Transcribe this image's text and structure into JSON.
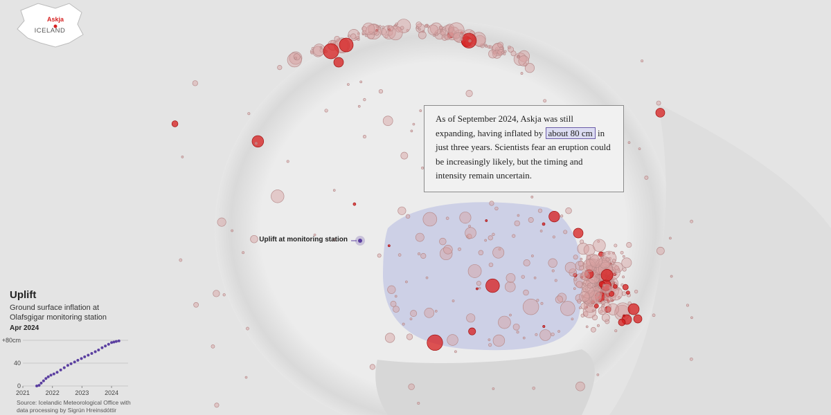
{
  "locator": {
    "place": "Askja",
    "country": "ICELAND"
  },
  "station_label": "Uplift at monitoring station",
  "annotation": {
    "before": "As of September 2024, Askja was still expanding, having inflated by",
    "highlight": "about 80 cm",
    "after": "in just three years. Scientists fear an eruption could be increasingly likely, but the timing and intensity remain uncertain."
  },
  "chart_data": {
    "type": "scatter",
    "title": "Uplift",
    "subtitle": "Ground surface inflation at Olafsgigar monitoring station",
    "date_label": "Apr 2024",
    "source": "Source: Icelandic Meteorological Office with data processing by Sigrún Hreinsdóttir",
    "x": [
      2021.47,
      2021.55,
      2021.62,
      2021.7,
      2021.78,
      2021.86,
      2021.95,
      2022.05,
      2022.16,
      2022.28,
      2022.4,
      2022.52,
      2022.63,
      2022.75,
      2022.86,
      2022.98,
      2023.09,
      2023.21,
      2023.33,
      2023.45,
      2023.56,
      2023.68,
      2023.79,
      2023.9,
      2024.0,
      2024.08,
      2024.16,
      2024.25
    ],
    "values": [
      0,
      1,
      5,
      9,
      13,
      16,
      19,
      21,
      24,
      28,
      32,
      36,
      39,
      42,
      45,
      48,
      51,
      54,
      57,
      60,
      63,
      67,
      70,
      73,
      76,
      77,
      78,
      79
    ],
    "color": "#5b3fa0",
    "xlim": [
      2021,
      2024.56
    ],
    "xticks": [
      2021,
      2022,
      2023,
      2024
    ],
    "ylim": [
      0,
      80
    ],
    "yticks": [
      0,
      40,
      {
        "value": 80,
        "label": "+80cm"
      }
    ],
    "grid": true
  }
}
